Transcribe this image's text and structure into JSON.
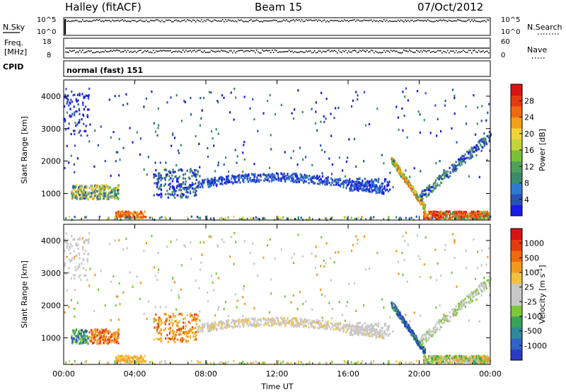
{
  "header": {
    "station": "Halley (fitACF)",
    "beam": "Beam 15",
    "date": "07/Oct/2012"
  },
  "top_panels": {
    "nsky_label": "N.Sky",
    "nsearch_label": "N.Search",
    "nsky_ticks": [
      "10^5",
      "10^0"
    ],
    "nsearch_ticks": [
      "10^5",
      "10^0"
    ],
    "freq_label": "Freq.",
    "freq_unit": "[MHz]",
    "freq_ticks": [
      "18",
      "8"
    ],
    "nave_label": "Nave",
    "nave_ticks": [
      "60",
      "0"
    ],
    "cpid_label": "CPID",
    "cpid_value": "normal (fast) 151"
  },
  "chart_data": [
    {
      "type": "heatmap",
      "quantity": "Power",
      "ylabel": "Slant Range [km]",
      "colorbar_label": "Power [dB]",
      "y_ticks": [
        1000,
        2000,
        3000,
        4000
      ],
      "ylim": [
        180,
        4500
      ],
      "x_ticks": [
        "00:00",
        "04:00",
        "08:00",
        "12:00",
        "16:00",
        "20:00",
        "00:00"
      ],
      "xlim_hours": [
        0,
        24
      ],
      "colorbar_ticks": [
        "4",
        "8",
        "12",
        "16",
        "20",
        "24",
        "28"
      ],
      "colorbar_colors": [
        "#1a1ae6",
        "#2a52b4",
        "#2f7bd0",
        "#3c8c6a",
        "#4fa05a",
        "#7cc03a",
        "#c2d63a",
        "#f2d23a",
        "#f2a01c",
        "#ee6a10",
        "#e43a10",
        "#d81414"
      ]
    },
    {
      "type": "heatmap",
      "quantity": "Velocity",
      "ylabel": "Slant Range [km]",
      "colorbar_label": "Velocity [m s^-1]",
      "y_ticks": [
        1000,
        2000,
        3000,
        4000
      ],
      "ylim": [
        180,
        4500
      ],
      "x_ticks": [
        "00:00",
        "04:00",
        "08:00",
        "12:00",
        "16:00",
        "20:00",
        "00:00"
      ],
      "xlim_hours": [
        0,
        24
      ],
      "xlabel": "Time UT",
      "colorbar_ticks": [
        "1000",
        "500",
        "100",
        "25",
        "-25",
        "-100",
        "-500",
        "-1000"
      ],
      "colorbar_colors": [
        "#2a3cc0",
        "#2f63c8",
        "#2f8a9c",
        "#3aa05a",
        "#7cc83a",
        "#c8c8c8",
        "#c8c8c8",
        "#f2c040",
        "#f29a20",
        "#ee6a10",
        "#e43a10",
        "#d81414"
      ]
    }
  ]
}
